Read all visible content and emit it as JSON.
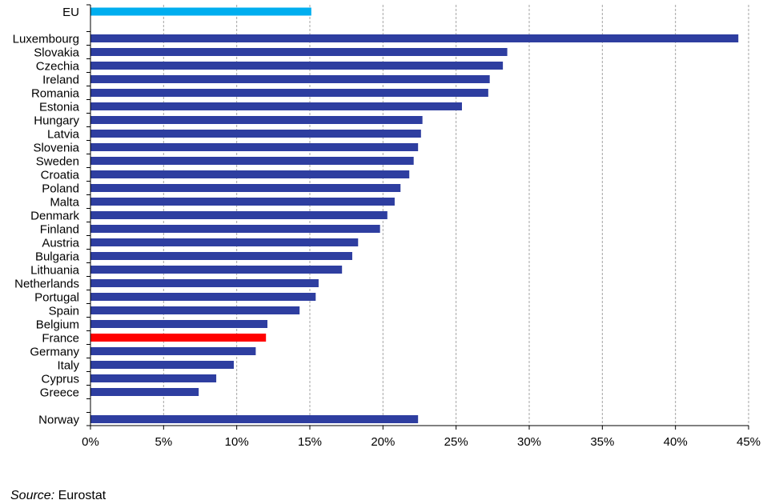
{
  "chart_data": {
    "type": "bar",
    "orientation": "horizontal",
    "categories": [
      "EU",
      "Luxembourg",
      "Slovakia",
      "Czechia",
      "Ireland",
      "Romania",
      "Estonia",
      "Hungary",
      "Latvia",
      "Slovenia",
      "Sweden",
      "Croatia",
      "Poland",
      "Malta",
      "Denmark",
      "Finland",
      "Austria",
      "Bulgaria",
      "Lithuania",
      "Netherlands",
      "Portugal",
      "Spain",
      "Belgium",
      "France",
      "Germany",
      "Italy",
      "Cyprus",
      "Greece",
      "Norway"
    ],
    "values": [
      15.1,
      44.3,
      28.5,
      28.2,
      27.3,
      27.2,
      25.4,
      22.7,
      22.6,
      22.4,
      22.1,
      21.8,
      21.2,
      20.8,
      20.3,
      19.8,
      18.3,
      17.9,
      17.2,
      15.6,
      15.4,
      14.3,
      12.1,
      12.0,
      11.3,
      9.8,
      8.6,
      7.4,
      22.4
    ],
    "x_ticks": [
      "0%",
      "5%",
      "10%",
      "15%",
      "20%",
      "25%",
      "30%",
      "35%",
      "40%",
      "45%"
    ],
    "xlim": [
      0,
      45
    ],
    "grid": "vertical dashed",
    "colors": {
      "default": "#2E3EA0",
      "EU": "#00AEEF",
      "France": "#FF0000",
      "grid": "#A6A6A6",
      "axis": "#000000"
    }
  },
  "source": {
    "label": "Source:",
    "text": "Eurostat"
  }
}
